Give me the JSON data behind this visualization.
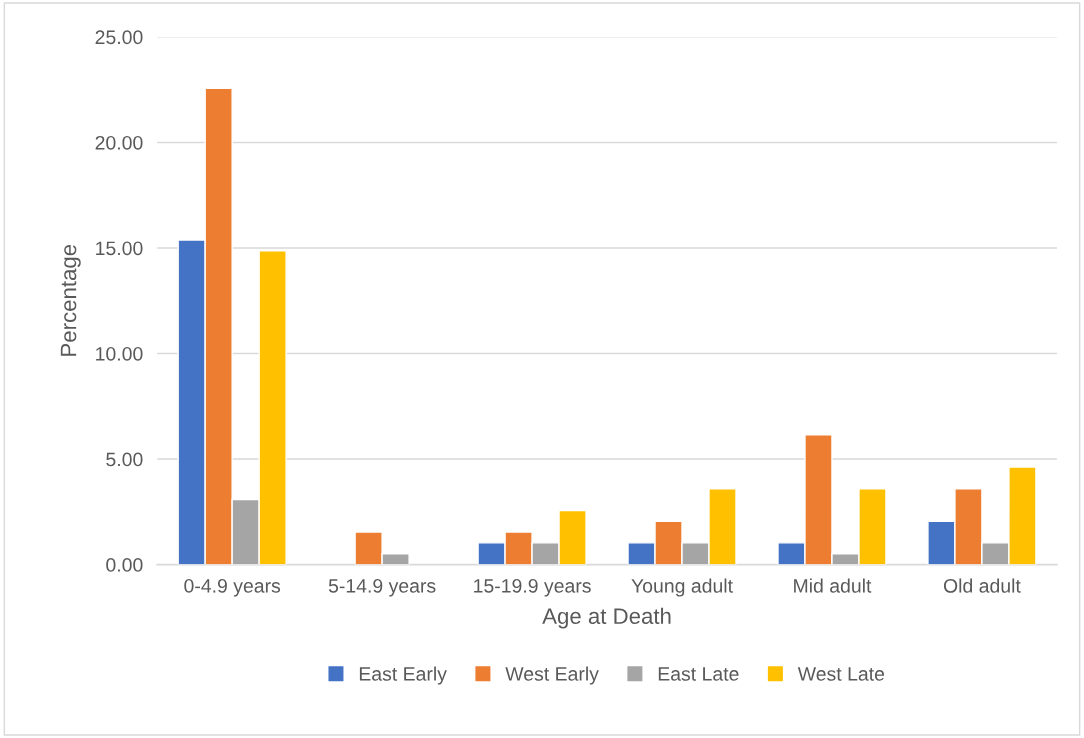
{
  "chart_data": {
    "type": "bar",
    "xlabel": "Age at Death",
    "ylabel": "Percentage",
    "categories": [
      "0-4.9 years",
      "5-14.9 years",
      "15-19.9 years",
      "Young adult",
      "Mid adult",
      "Old adult"
    ],
    "series": [
      {
        "name": "East Early",
        "color": "#4472c4",
        "values": [
          15.38,
          null,
          1.03,
          1.03,
          1.03,
          2.05
        ]
      },
      {
        "name": "West Early",
        "color": "#ed7d31",
        "values": [
          22.56,
          1.54,
          1.54,
          2.05,
          6.15,
          3.59
        ]
      },
      {
        "name": "East Late",
        "color": "#a5a5a5",
        "values": [
          3.08,
          0.51,
          1.03,
          1.03,
          0.51,
          1.03
        ]
      },
      {
        "name": "West Late",
        "color": "#ffc000",
        "values": [
          14.87,
          null,
          2.56,
          3.59,
          3.59,
          4.62
        ]
      }
    ],
    "ylim": [
      0,
      25
    ],
    "yticks": [
      {
        "value": 0,
        "label": "0.00"
      },
      {
        "value": 5,
        "label": "5.00"
      },
      {
        "value": 10,
        "label": "10.00"
      },
      {
        "value": 15,
        "label": "15.00"
      },
      {
        "value": 20,
        "label": "20.00"
      },
      {
        "value": 25,
        "label": "25.00"
      }
    ],
    "grid": "y",
    "legend": "bottom"
  }
}
